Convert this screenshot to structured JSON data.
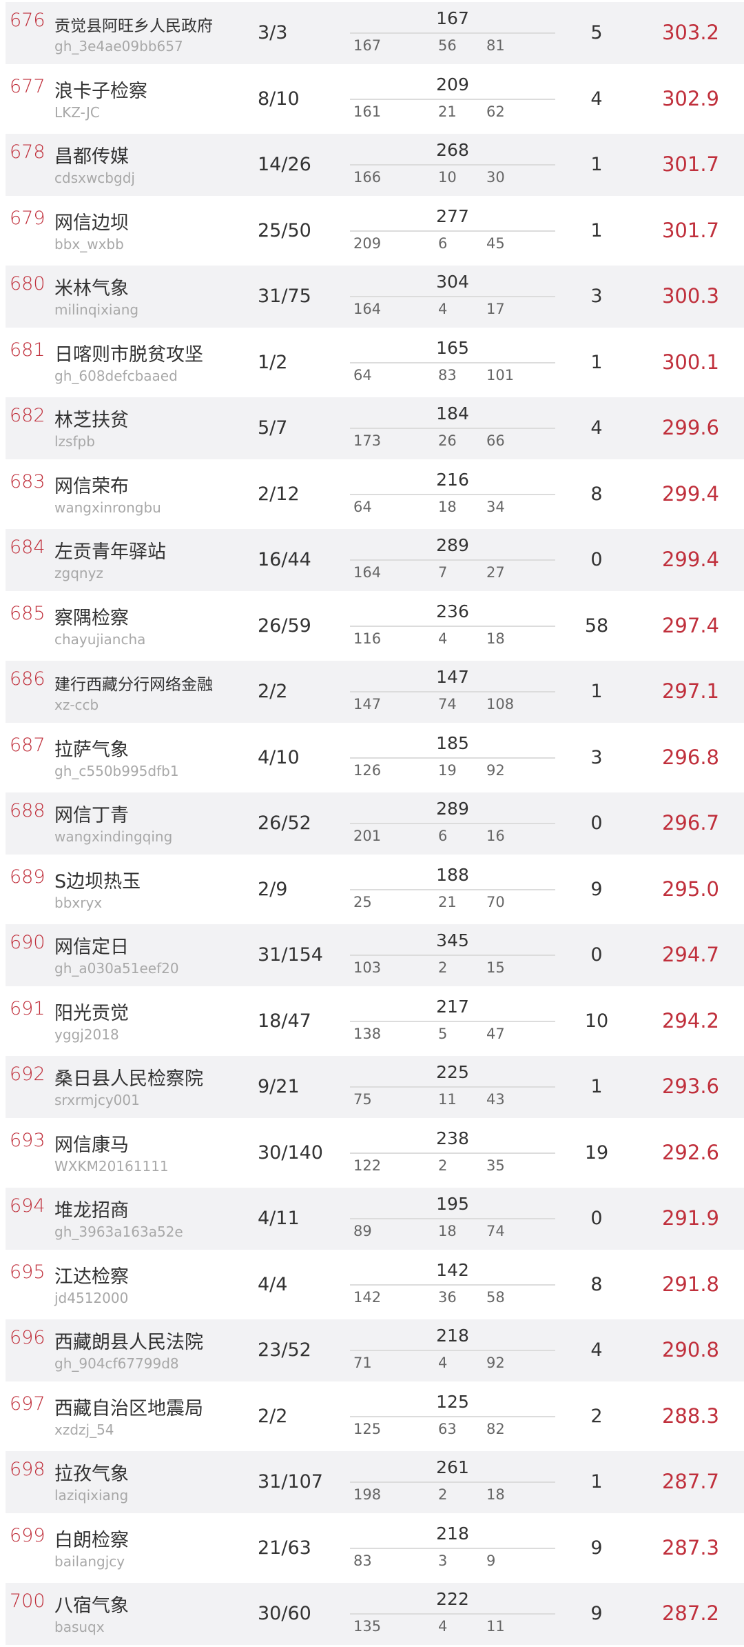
{
  "colors": {
    "rank": "#c0303c",
    "score": "#c0303c",
    "alt_row_bg": "#f2f2f4"
  },
  "rows": [
    {
      "rank": "676",
      "name": "贡觉县阿旺乡人民政府",
      "account": "gh_3e4ae09bb657",
      "fraction": "3/3",
      "total": "167",
      "v1": "167",
      "v2": "56",
      "v3": "81",
      "count": "5",
      "score": "303.2"
    },
    {
      "rank": "677",
      "name": "浪卡子检察",
      "account": "LKZ-JC",
      "fraction": "8/10",
      "total": "209",
      "v1": "161",
      "v2": "21",
      "v3": "62",
      "count": "4",
      "score": "302.9"
    },
    {
      "rank": "678",
      "name": "昌都传媒",
      "account": "cdsxwcbgdj",
      "fraction": "14/26",
      "total": "268",
      "v1": "166",
      "v2": "10",
      "v3": "30",
      "count": "1",
      "score": "301.7"
    },
    {
      "rank": "679",
      "name": "网信边坝",
      "account": "bbx_wxbb",
      "fraction": "25/50",
      "total": "277",
      "v1": "209",
      "v2": "6",
      "v3": "45",
      "count": "1",
      "score": "301.7"
    },
    {
      "rank": "680",
      "name": "米林气象",
      "account": "milinqixiang",
      "fraction": "31/75",
      "total": "304",
      "v1": "164",
      "v2": "4",
      "v3": "17",
      "count": "3",
      "score": "300.3"
    },
    {
      "rank": "681",
      "name": "日喀则市脱贫攻坚",
      "account": "gh_608defcbaaed",
      "fraction": "1/2",
      "total": "165",
      "v1": "64",
      "v2": "83",
      "v3": "101",
      "count": "1",
      "score": "300.1"
    },
    {
      "rank": "682",
      "name": "林芝扶贫",
      "account": "lzsfpb",
      "fraction": "5/7",
      "total": "184",
      "v1": "173",
      "v2": "26",
      "v3": "66",
      "count": "4",
      "score": "299.6"
    },
    {
      "rank": "683",
      "name": "网信荣布",
      "account": "wangxinrongbu",
      "fraction": "2/12",
      "total": "216",
      "v1": "64",
      "v2": "18",
      "v3": "34",
      "count": "8",
      "score": "299.4"
    },
    {
      "rank": "684",
      "name": "左贡青年驿站",
      "account": "zgqnyz",
      "fraction": "16/44",
      "total": "289",
      "v1": "164",
      "v2": "7",
      "v3": "27",
      "count": "0",
      "score": "299.4"
    },
    {
      "rank": "685",
      "name": "察隅检察",
      "account": "chayujiancha",
      "fraction": "26/59",
      "total": "236",
      "v1": "116",
      "v2": "4",
      "v3": "18",
      "count": "58",
      "score": "297.4"
    },
    {
      "rank": "686",
      "name": "建行西藏分行网络金融",
      "account": "xz-ccb",
      "fraction": "2/2",
      "total": "147",
      "v1": "147",
      "v2": "74",
      "v3": "108",
      "count": "1",
      "score": "297.1"
    },
    {
      "rank": "687",
      "name": "拉萨气象",
      "account": "gh_c550b995dfb1",
      "fraction": "4/10",
      "total": "185",
      "v1": "126",
      "v2": "19",
      "v3": "92",
      "count": "3",
      "score": "296.8"
    },
    {
      "rank": "688",
      "name": "网信丁青",
      "account": "wangxindingqing",
      "fraction": "26/52",
      "total": "289",
      "v1": "201",
      "v2": "6",
      "v3": "16",
      "count": "0",
      "score": "296.7"
    },
    {
      "rank": "689",
      "name": "S边坝热玉",
      "account": "bbxryx",
      "fraction": "2/9",
      "total": "188",
      "v1": "25",
      "v2": "21",
      "v3": "70",
      "count": "9",
      "score": "295.0"
    },
    {
      "rank": "690",
      "name": "网信定日",
      "account": "gh_a030a51eef20",
      "fraction": "31/154",
      "total": "345",
      "v1": "103",
      "v2": "2",
      "v3": "15",
      "count": "0",
      "score": "294.7"
    },
    {
      "rank": "691",
      "name": "阳光贡觉",
      "account": "yggj2018",
      "fraction": "18/47",
      "total": "217",
      "v1": "138",
      "v2": "5",
      "v3": "47",
      "count": "10",
      "score": "294.2"
    },
    {
      "rank": "692",
      "name": "桑日县人民检察院",
      "account": "srxrmjcy001",
      "fraction": "9/21",
      "total": "225",
      "v1": "75",
      "v2": "11",
      "v3": "43",
      "count": "1",
      "score": "293.6"
    },
    {
      "rank": "693",
      "name": "网信康马",
      "account": "WXKM20161111",
      "fraction": "30/140",
      "total": "238",
      "v1": "122",
      "v2": "2",
      "v3": "35",
      "count": "19",
      "score": "292.6"
    },
    {
      "rank": "694",
      "name": "堆龙招商",
      "account": "gh_3963a163a52e",
      "fraction": "4/11",
      "total": "195",
      "v1": "89",
      "v2": "18",
      "v3": "74",
      "count": "0",
      "score": "291.9"
    },
    {
      "rank": "695",
      "name": "江达检察",
      "account": "jd4512000",
      "fraction": "4/4",
      "total": "142",
      "v1": "142",
      "v2": "36",
      "v3": "58",
      "count": "8",
      "score": "291.8"
    },
    {
      "rank": "696",
      "name": "西藏朗县人民法院",
      "account": "gh_904cf67799d8",
      "fraction": "23/52",
      "total": "218",
      "v1": "71",
      "v2": "4",
      "v3": "92",
      "count": "4",
      "score": "290.8"
    },
    {
      "rank": "697",
      "name": "西藏自治区地震局",
      "account": "xzdzj_54",
      "fraction": "2/2",
      "total": "125",
      "v1": "125",
      "v2": "63",
      "v3": "82",
      "count": "2",
      "score": "288.3"
    },
    {
      "rank": "698",
      "name": "拉孜气象",
      "account": "laziqixiang",
      "fraction": "31/107",
      "total": "261",
      "v1": "198",
      "v2": "2",
      "v3": "18",
      "count": "1",
      "score": "287.7"
    },
    {
      "rank": "699",
      "name": "白朗检察",
      "account": "bailangjcy",
      "fraction": "21/63",
      "total": "218",
      "v1": "83",
      "v2": "3",
      "v3": "9",
      "count": "9",
      "score": "287.3"
    },
    {
      "rank": "700",
      "name": "八宿气象",
      "account": "basuqx",
      "fraction": "30/60",
      "total": "222",
      "v1": "135",
      "v2": "4",
      "v3": "11",
      "count": "9",
      "score": "287.2"
    }
  ]
}
